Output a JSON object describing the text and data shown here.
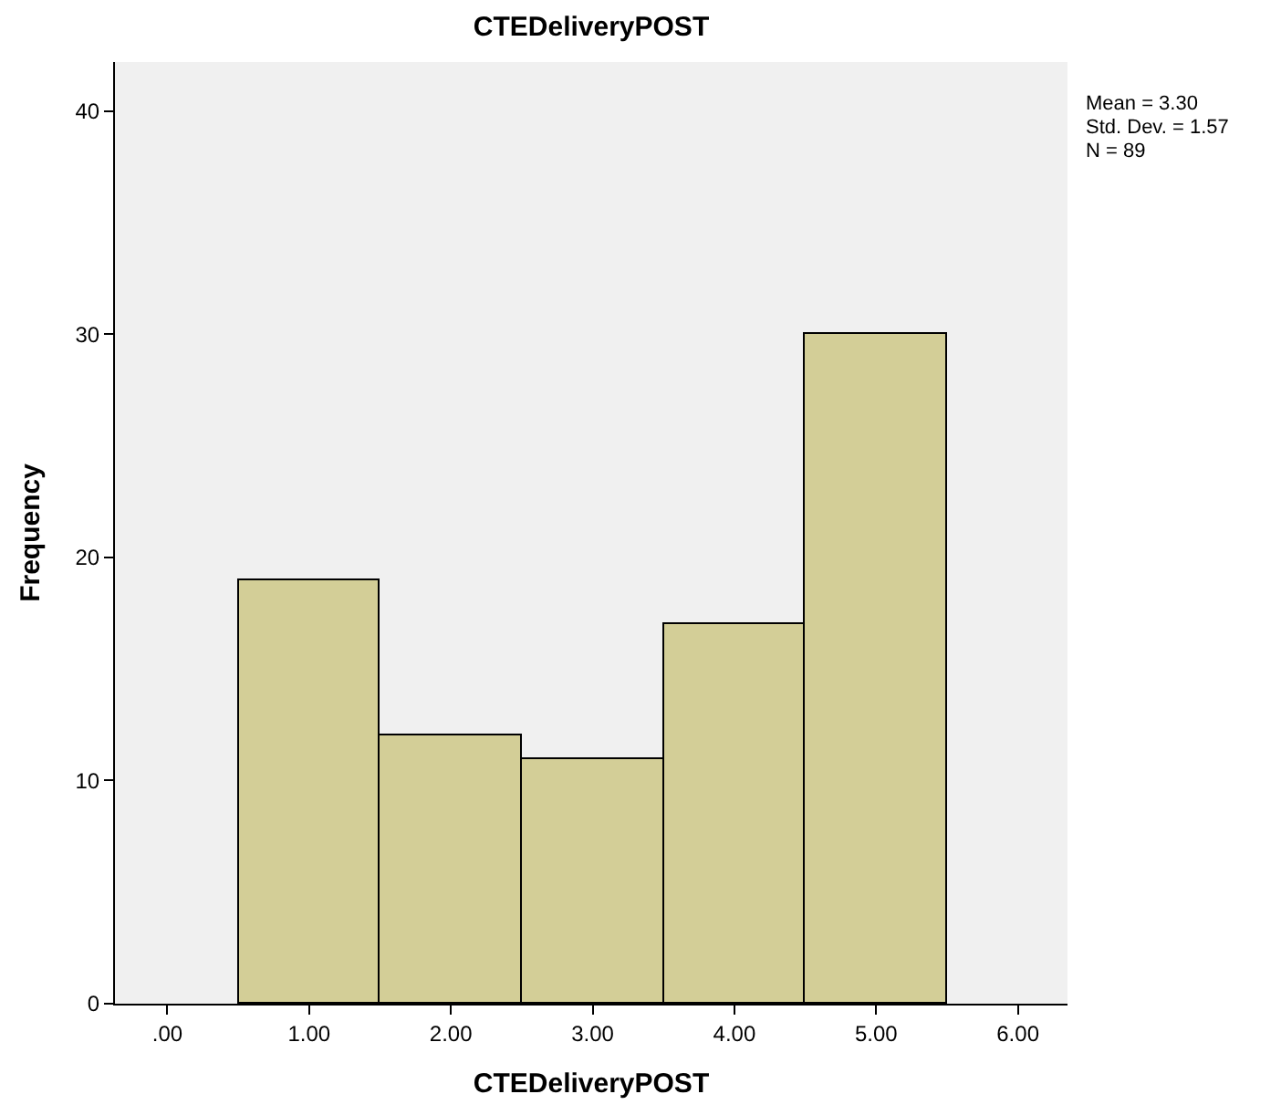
{
  "chart_data": {
    "type": "histogram",
    "title": "CTEDeliveryPOST",
    "xlabel": "CTEDeliveryPOST",
    "ylabel": "Frequency",
    "bins": [
      0.5,
      1.5,
      2.5,
      3.5,
      4.5,
      5.5
    ],
    "values": [
      19,
      12,
      11,
      17,
      30
    ],
    "color": "#d3ce97",
    "xlim": [
      -0.37,
      6.35
    ],
    "xticks": [
      {
        "value": 0,
        "label": ".00"
      },
      {
        "value": 1,
        "label": "1.00"
      },
      {
        "value": 2,
        "label": "2.00"
      },
      {
        "value": 3,
        "label": "3.00"
      },
      {
        "value": 4,
        "label": "4.00"
      },
      {
        "value": 5,
        "label": "5.00"
      },
      {
        "value": 6,
        "label": "6.00"
      }
    ],
    "ylim": [
      0,
      42.2
    ],
    "yticks": [
      0,
      10,
      20,
      30,
      40
    ],
    "grid": false,
    "annotations": [
      "Mean = 3.30",
      "Std. Dev. = 1.57",
      "N = 89"
    ]
  }
}
